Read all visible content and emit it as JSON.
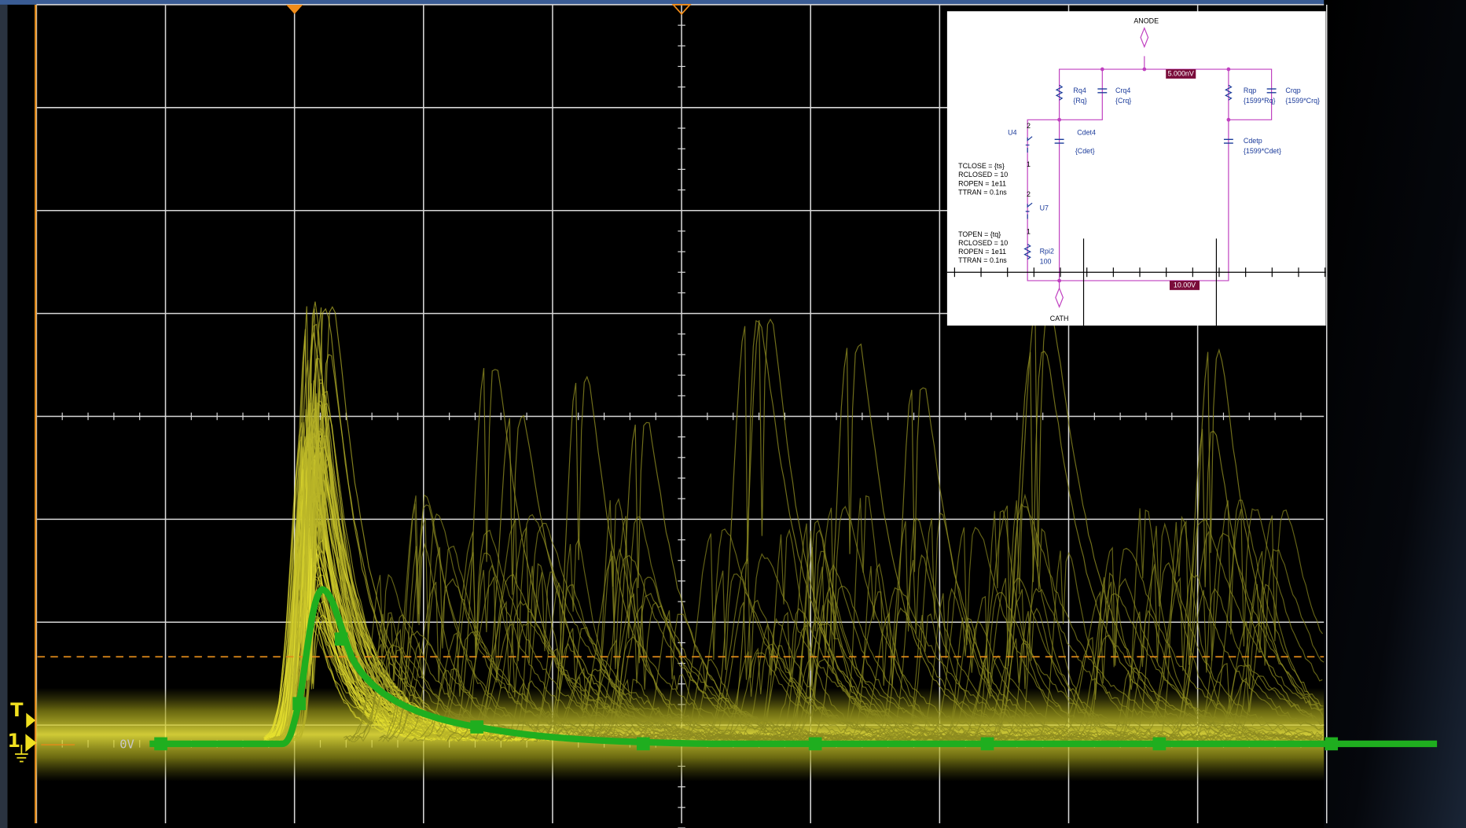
{
  "scope": {
    "trigger_marker": "T",
    "channel_marker": "1",
    "ground_label": "0V"
  },
  "schematic": {
    "anode": "ANODE",
    "cathode": "CATH",
    "components": [
      {
        "name": "Rq4",
        "value": "{Rq}"
      },
      {
        "name": "Crq4",
        "value": "{Crq}"
      },
      {
        "name": "Cdet4",
        "value": "{Cdet}"
      },
      {
        "name": "Rqp",
        "value": "{1599*Rq}"
      },
      {
        "name": "Crqp",
        "value": "{1599*Crq}"
      },
      {
        "name": "Cdetp",
        "value": "{1599*Cdet}"
      },
      {
        "name": "Rpi2",
        "value": "100"
      }
    ],
    "switches": [
      {
        "name": "U4",
        "pins": [
          "2",
          "1"
        ],
        "params": [
          "TCLOSE = {ts}",
          "RCLOSED = 10",
          "ROPEN = 1e11",
          "TTRAN = 0.1ns"
        ]
      },
      {
        "name": "U7",
        "pins": [
          "2",
          "1"
        ],
        "params": [
          "TOPEN = {tq}",
          "RCLOSED = 10",
          "ROPEN = 1e11",
          "TTRAN = 0.1ns"
        ]
      }
    ],
    "probes": [
      "5.000nV",
      "10.00V"
    ]
  }
}
